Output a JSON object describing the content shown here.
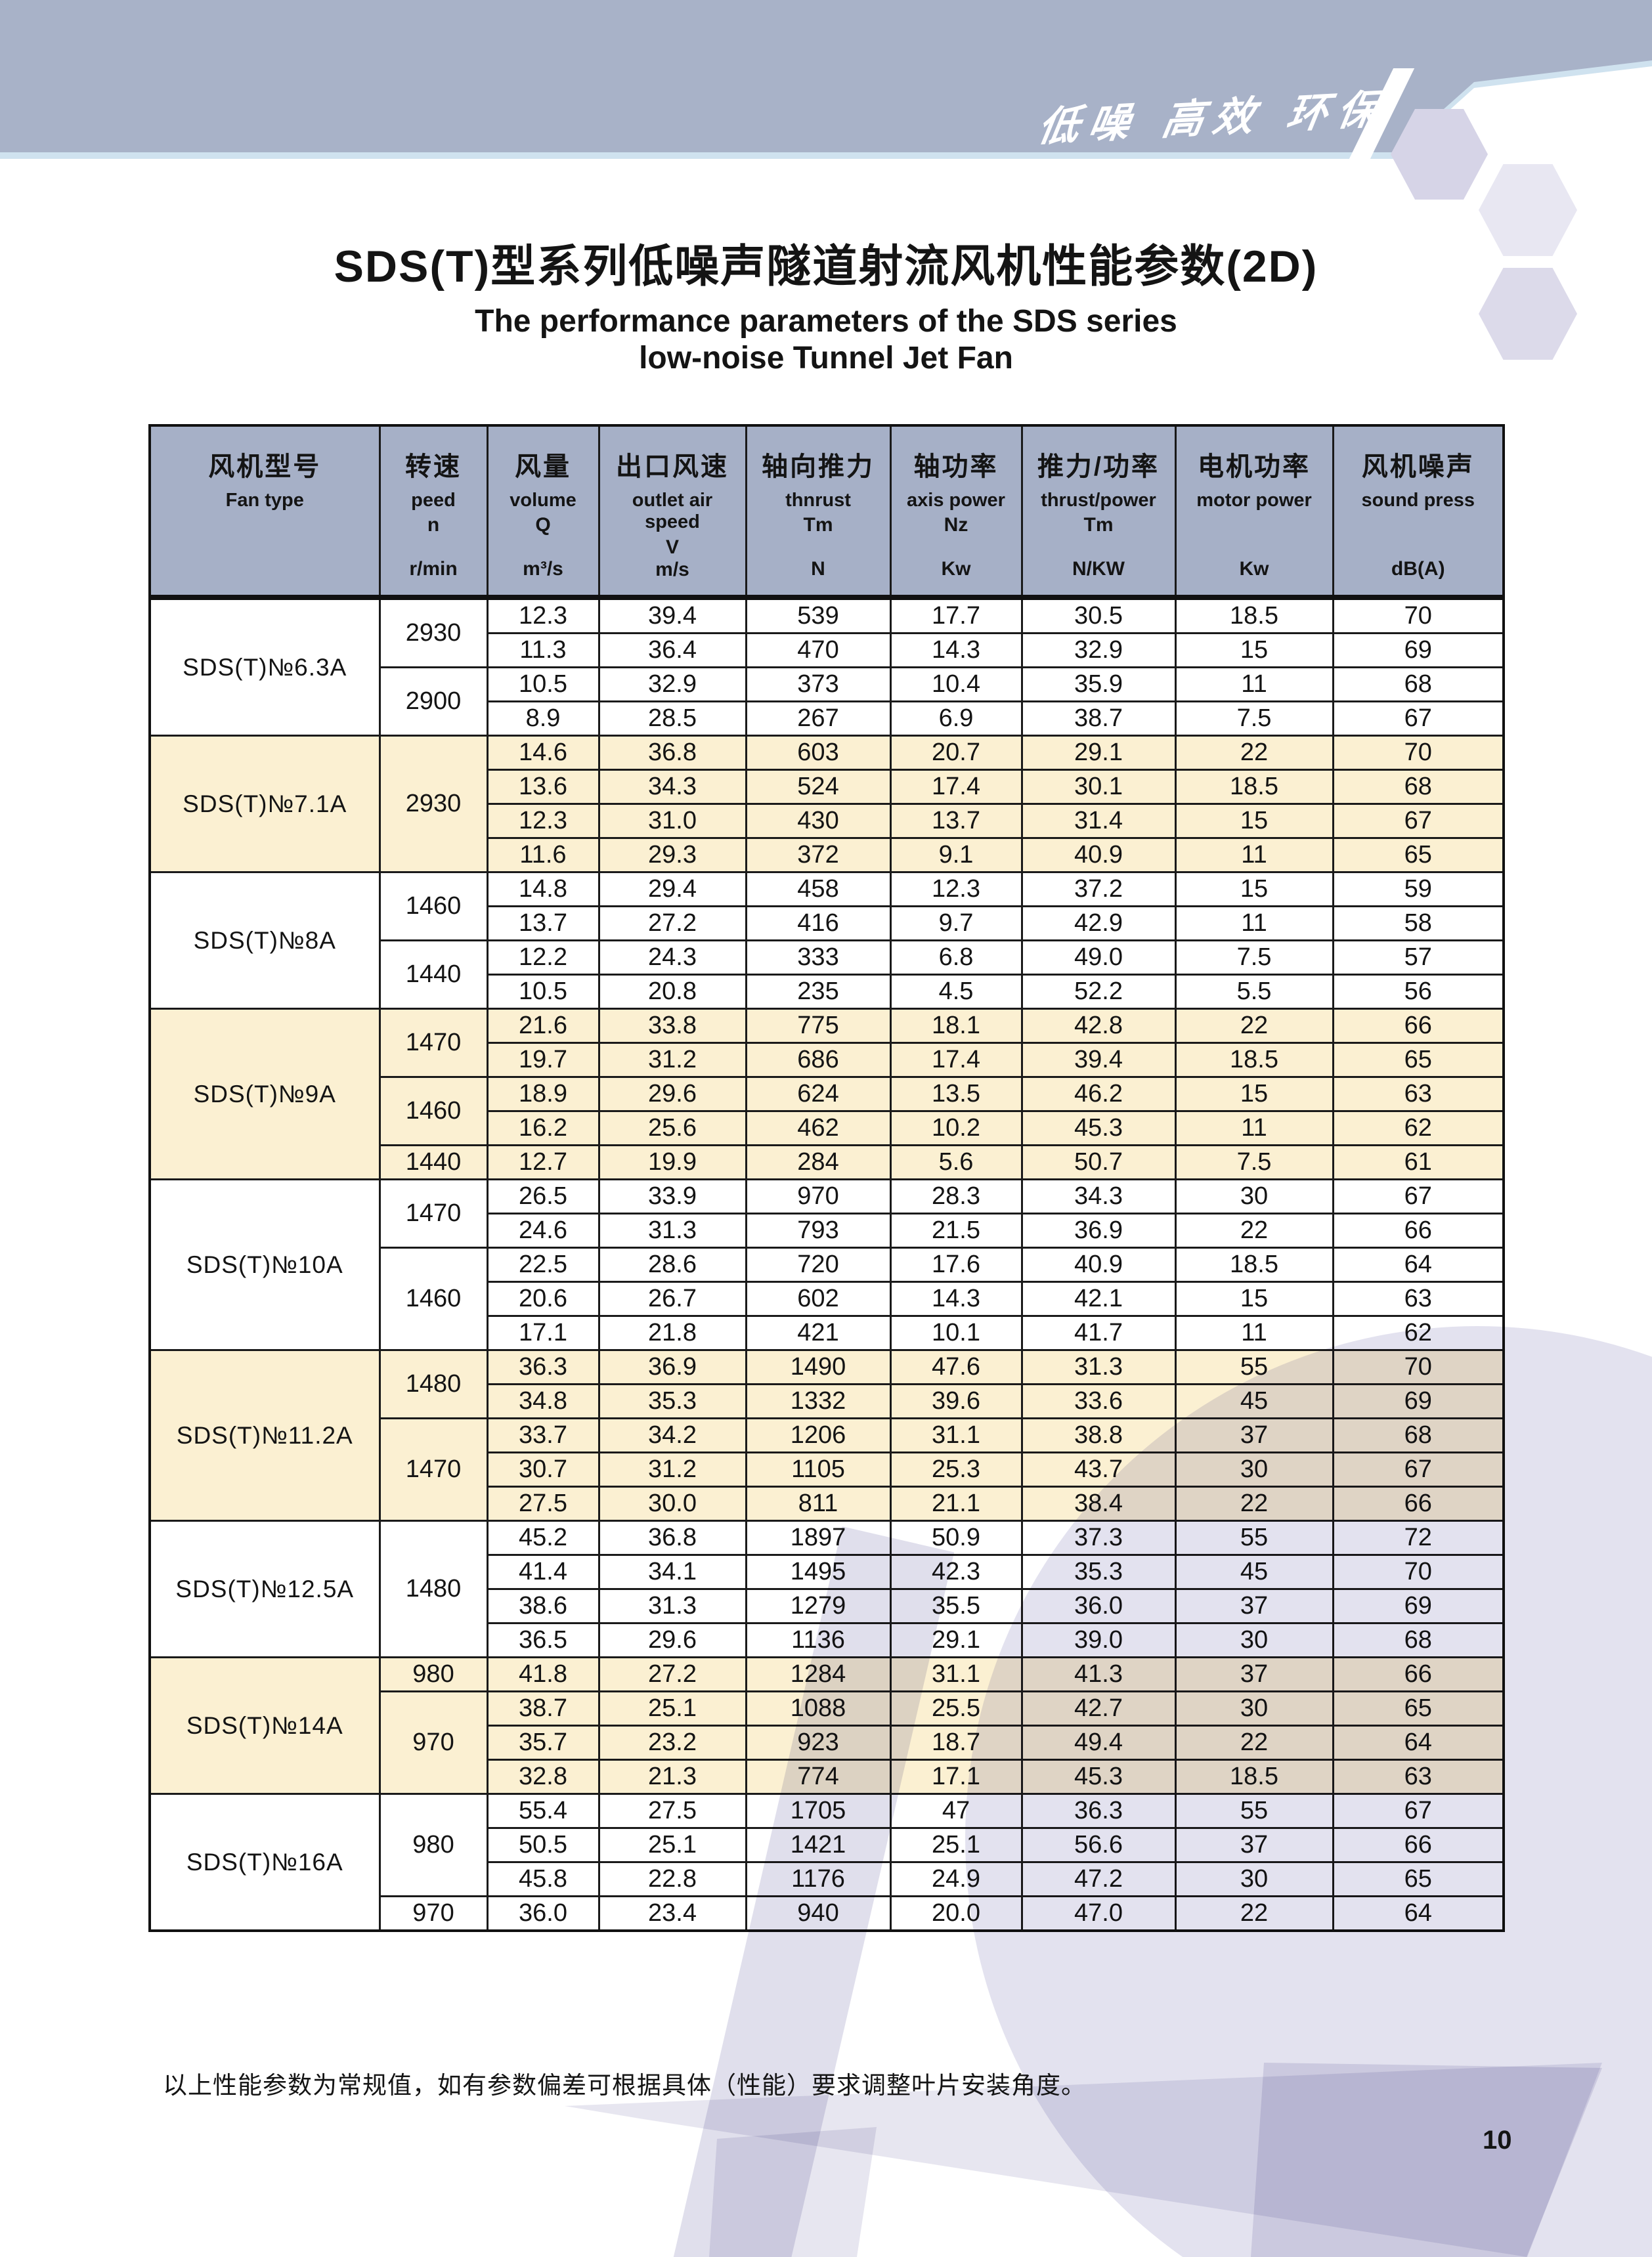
{
  "banner": {
    "slogan": "低噪 高效 环保"
  },
  "header": {
    "title_cn": "SDS(T)型系列低噪声隧道射流风机性能参数(2D)",
    "title_en_1": "The performance parameters of the SDS series",
    "title_en_2": "low-noise Tunnel Jet Fan"
  },
  "footer": {
    "note": "以上性能参数为常规值，如有参数偏差可根据具体（性能）要求调整叶片安装角度。",
    "page_number": "10"
  },
  "colors": {
    "band_blue": "#a8b2c8",
    "band_underline": "#cfe2ef",
    "header_bg": "#a6b0c7",
    "row_cream": "#fbf0d2",
    "row_white": "#ffffff",
    "hex_1": "#d6d4e7",
    "hex_2": "#e8e7f2",
    "hex_3": "#dcdaea",
    "watermark": "#e3e2ef"
  },
  "table": {
    "columns": [
      {
        "cn": "风机型号",
        "en": "Fan type",
        "sym": "",
        "unit": ""
      },
      {
        "cn": "转速",
        "en": "peed",
        "sym": "n",
        "unit": "r/min"
      },
      {
        "cn": "风量",
        "en": "volume",
        "sym": "Q",
        "unit": "m³/s"
      },
      {
        "cn": "出口风速",
        "en": "outlet air speed",
        "sym": "V",
        "unit": "m/s"
      },
      {
        "cn": "轴向推力",
        "en": "thnrust",
        "sym": "Tm",
        "unit": "N"
      },
      {
        "cn": "轴功率",
        "en": "axis power",
        "sym": "Nz",
        "unit": "Kw"
      },
      {
        "cn": "推力/功率",
        "en": "thrust/power",
        "sym": "Tm",
        "unit": "N/KW"
      },
      {
        "cn": "电机功率",
        "en": "motor power",
        "sym": "",
        "unit": "Kw"
      },
      {
        "cn": "风机噪声",
        "en": "sound press",
        "sym": "",
        "unit": "dB(A)"
      }
    ],
    "groups": [
      {
        "fan": "SDS(T)№6.3A",
        "shade": "w",
        "speeds": [
          {
            "rpm": "2930",
            "rows": 2
          },
          {
            "rpm": "2900",
            "rows": 2
          }
        ],
        "rows": [
          [
            "12.3",
            "39.4",
            "539",
            "17.7",
            "30.5",
            "18.5",
            "70"
          ],
          [
            "11.3",
            "36.4",
            "470",
            "14.3",
            "32.9",
            "15",
            "69"
          ],
          [
            "10.5",
            "32.9",
            "373",
            "10.4",
            "35.9",
            "11",
            "68"
          ],
          [
            "8.9",
            "28.5",
            "267",
            "6.9",
            "38.7",
            "7.5",
            "67"
          ]
        ]
      },
      {
        "fan": "SDS(T)№7.1A",
        "shade": "c",
        "speeds": [
          {
            "rpm": "2930",
            "rows": 4
          }
        ],
        "rows": [
          [
            "14.6",
            "36.8",
            "603",
            "20.7",
            "29.1",
            "22",
            "70"
          ],
          [
            "13.6",
            "34.3",
            "524",
            "17.4",
            "30.1",
            "18.5",
            "68"
          ],
          [
            "12.3",
            "31.0",
            "430",
            "13.7",
            "31.4",
            "15",
            "67"
          ],
          [
            "11.6",
            "29.3",
            "372",
            "9.1",
            "40.9",
            "11",
            "65"
          ]
        ]
      },
      {
        "fan": "SDS(T)№8A",
        "shade": "w",
        "speeds": [
          {
            "rpm": "1460",
            "rows": 2
          },
          {
            "rpm": "1440",
            "rows": 2
          }
        ],
        "rows": [
          [
            "14.8",
            "29.4",
            "458",
            "12.3",
            "37.2",
            "15",
            "59"
          ],
          [
            "13.7",
            "27.2",
            "416",
            "9.7",
            "42.9",
            "11",
            "58"
          ],
          [
            "12.2",
            "24.3",
            "333",
            "6.8",
            "49.0",
            "7.5",
            "57"
          ],
          [
            "10.5",
            "20.8",
            "235",
            "4.5",
            "52.2",
            "5.5",
            "56"
          ]
        ]
      },
      {
        "fan": "SDS(T)№9A",
        "shade": "c",
        "speeds": [
          {
            "rpm": "1470",
            "rows": 2
          },
          {
            "rpm": "1460",
            "rows": 2
          },
          {
            "rpm": "1440",
            "rows": 1
          }
        ],
        "rows": [
          [
            "21.6",
            "33.8",
            "775",
            "18.1",
            "42.8",
            "22",
            "66"
          ],
          [
            "19.7",
            "31.2",
            "686",
            "17.4",
            "39.4",
            "18.5",
            "65"
          ],
          [
            "18.9",
            "29.6",
            "624",
            "13.5",
            "46.2",
            "15",
            "63"
          ],
          [
            "16.2",
            "25.6",
            "462",
            "10.2",
            "45.3",
            "11",
            "62"
          ],
          [
            "12.7",
            "19.9",
            "284",
            "5.6",
            "50.7",
            "7.5",
            "61"
          ]
        ]
      },
      {
        "fan": "SDS(T)№10A",
        "shade": "w",
        "speeds": [
          {
            "rpm": "1470",
            "rows": 2
          },
          {
            "rpm": "1460",
            "rows": 3
          }
        ],
        "rows": [
          [
            "26.5",
            "33.9",
            "970",
            "28.3",
            "34.3",
            "30",
            "67"
          ],
          [
            "24.6",
            "31.3",
            "793",
            "21.5",
            "36.9",
            "22",
            "66"
          ],
          [
            "22.5",
            "28.6",
            "720",
            "17.6",
            "40.9",
            "18.5",
            "64"
          ],
          [
            "20.6",
            "26.7",
            "602",
            "14.3",
            "42.1",
            "15",
            "63"
          ],
          [
            "17.1",
            "21.8",
            "421",
            "10.1",
            "41.7",
            "11",
            "62"
          ]
        ]
      },
      {
        "fan": "SDS(T)№11.2A",
        "shade": "c",
        "speeds": [
          {
            "rpm": "1480",
            "rows": 2
          },
          {
            "rpm": "1470",
            "rows": 3
          }
        ],
        "rows": [
          [
            "36.3",
            "36.9",
            "1490",
            "47.6",
            "31.3",
            "55",
            "70"
          ],
          [
            "34.8",
            "35.3",
            "1332",
            "39.6",
            "33.6",
            "45",
            "69"
          ],
          [
            "33.7",
            "34.2",
            "1206",
            "31.1",
            "38.8",
            "37",
            "68"
          ],
          [
            "30.7",
            "31.2",
            "1105",
            "25.3",
            "43.7",
            "30",
            "67"
          ],
          [
            "27.5",
            "30.0",
            "811",
            "21.1",
            "38.4",
            "22",
            "66"
          ]
        ]
      },
      {
        "fan": "SDS(T)№12.5A",
        "shade": "w",
        "speeds": [
          {
            "rpm": "1480",
            "rows": 4
          }
        ],
        "rows": [
          [
            "45.2",
            "36.8",
            "1897",
            "50.9",
            "37.3",
            "55",
            "72"
          ],
          [
            "41.4",
            "34.1",
            "1495",
            "42.3",
            "35.3",
            "45",
            "70"
          ],
          [
            "38.6",
            "31.3",
            "1279",
            "35.5",
            "36.0",
            "37",
            "69"
          ],
          [
            "36.5",
            "29.6",
            "1136",
            "29.1",
            "39.0",
            "30",
            "68"
          ]
        ]
      },
      {
        "fan": "SDS(T)№14A",
        "shade": "c",
        "speeds": [
          {
            "rpm": "980",
            "rows": 1
          },
          {
            "rpm": "970",
            "rows": 3
          }
        ],
        "rows": [
          [
            "41.8",
            "27.2",
            "1284",
            "31.1",
            "41.3",
            "37",
            "66"
          ],
          [
            "38.7",
            "25.1",
            "1088",
            "25.5",
            "42.7",
            "30",
            "65"
          ],
          [
            "35.7",
            "23.2",
            "923",
            "18.7",
            "49.4",
            "22",
            "64"
          ],
          [
            "32.8",
            "21.3",
            "774",
            "17.1",
            "45.3",
            "18.5",
            "63"
          ]
        ]
      },
      {
        "fan": "SDS(T)№16A",
        "shade": "w",
        "speeds": [
          {
            "rpm": "980",
            "rows": 3
          },
          {
            "rpm": "970",
            "rows": 1
          }
        ],
        "rows": [
          [
            "55.4",
            "27.5",
            "1705",
            "47",
            "36.3",
            "55",
            "67"
          ],
          [
            "50.5",
            "25.1",
            "1421",
            "25.1",
            "56.6",
            "37",
            "66"
          ],
          [
            "45.8",
            "22.8",
            "1176",
            "24.9",
            "47.2",
            "30",
            "65"
          ],
          [
            "36.0",
            "23.4",
            "940",
            "20.0",
            "47.0",
            "22",
            "64"
          ]
        ]
      }
    ]
  }
}
